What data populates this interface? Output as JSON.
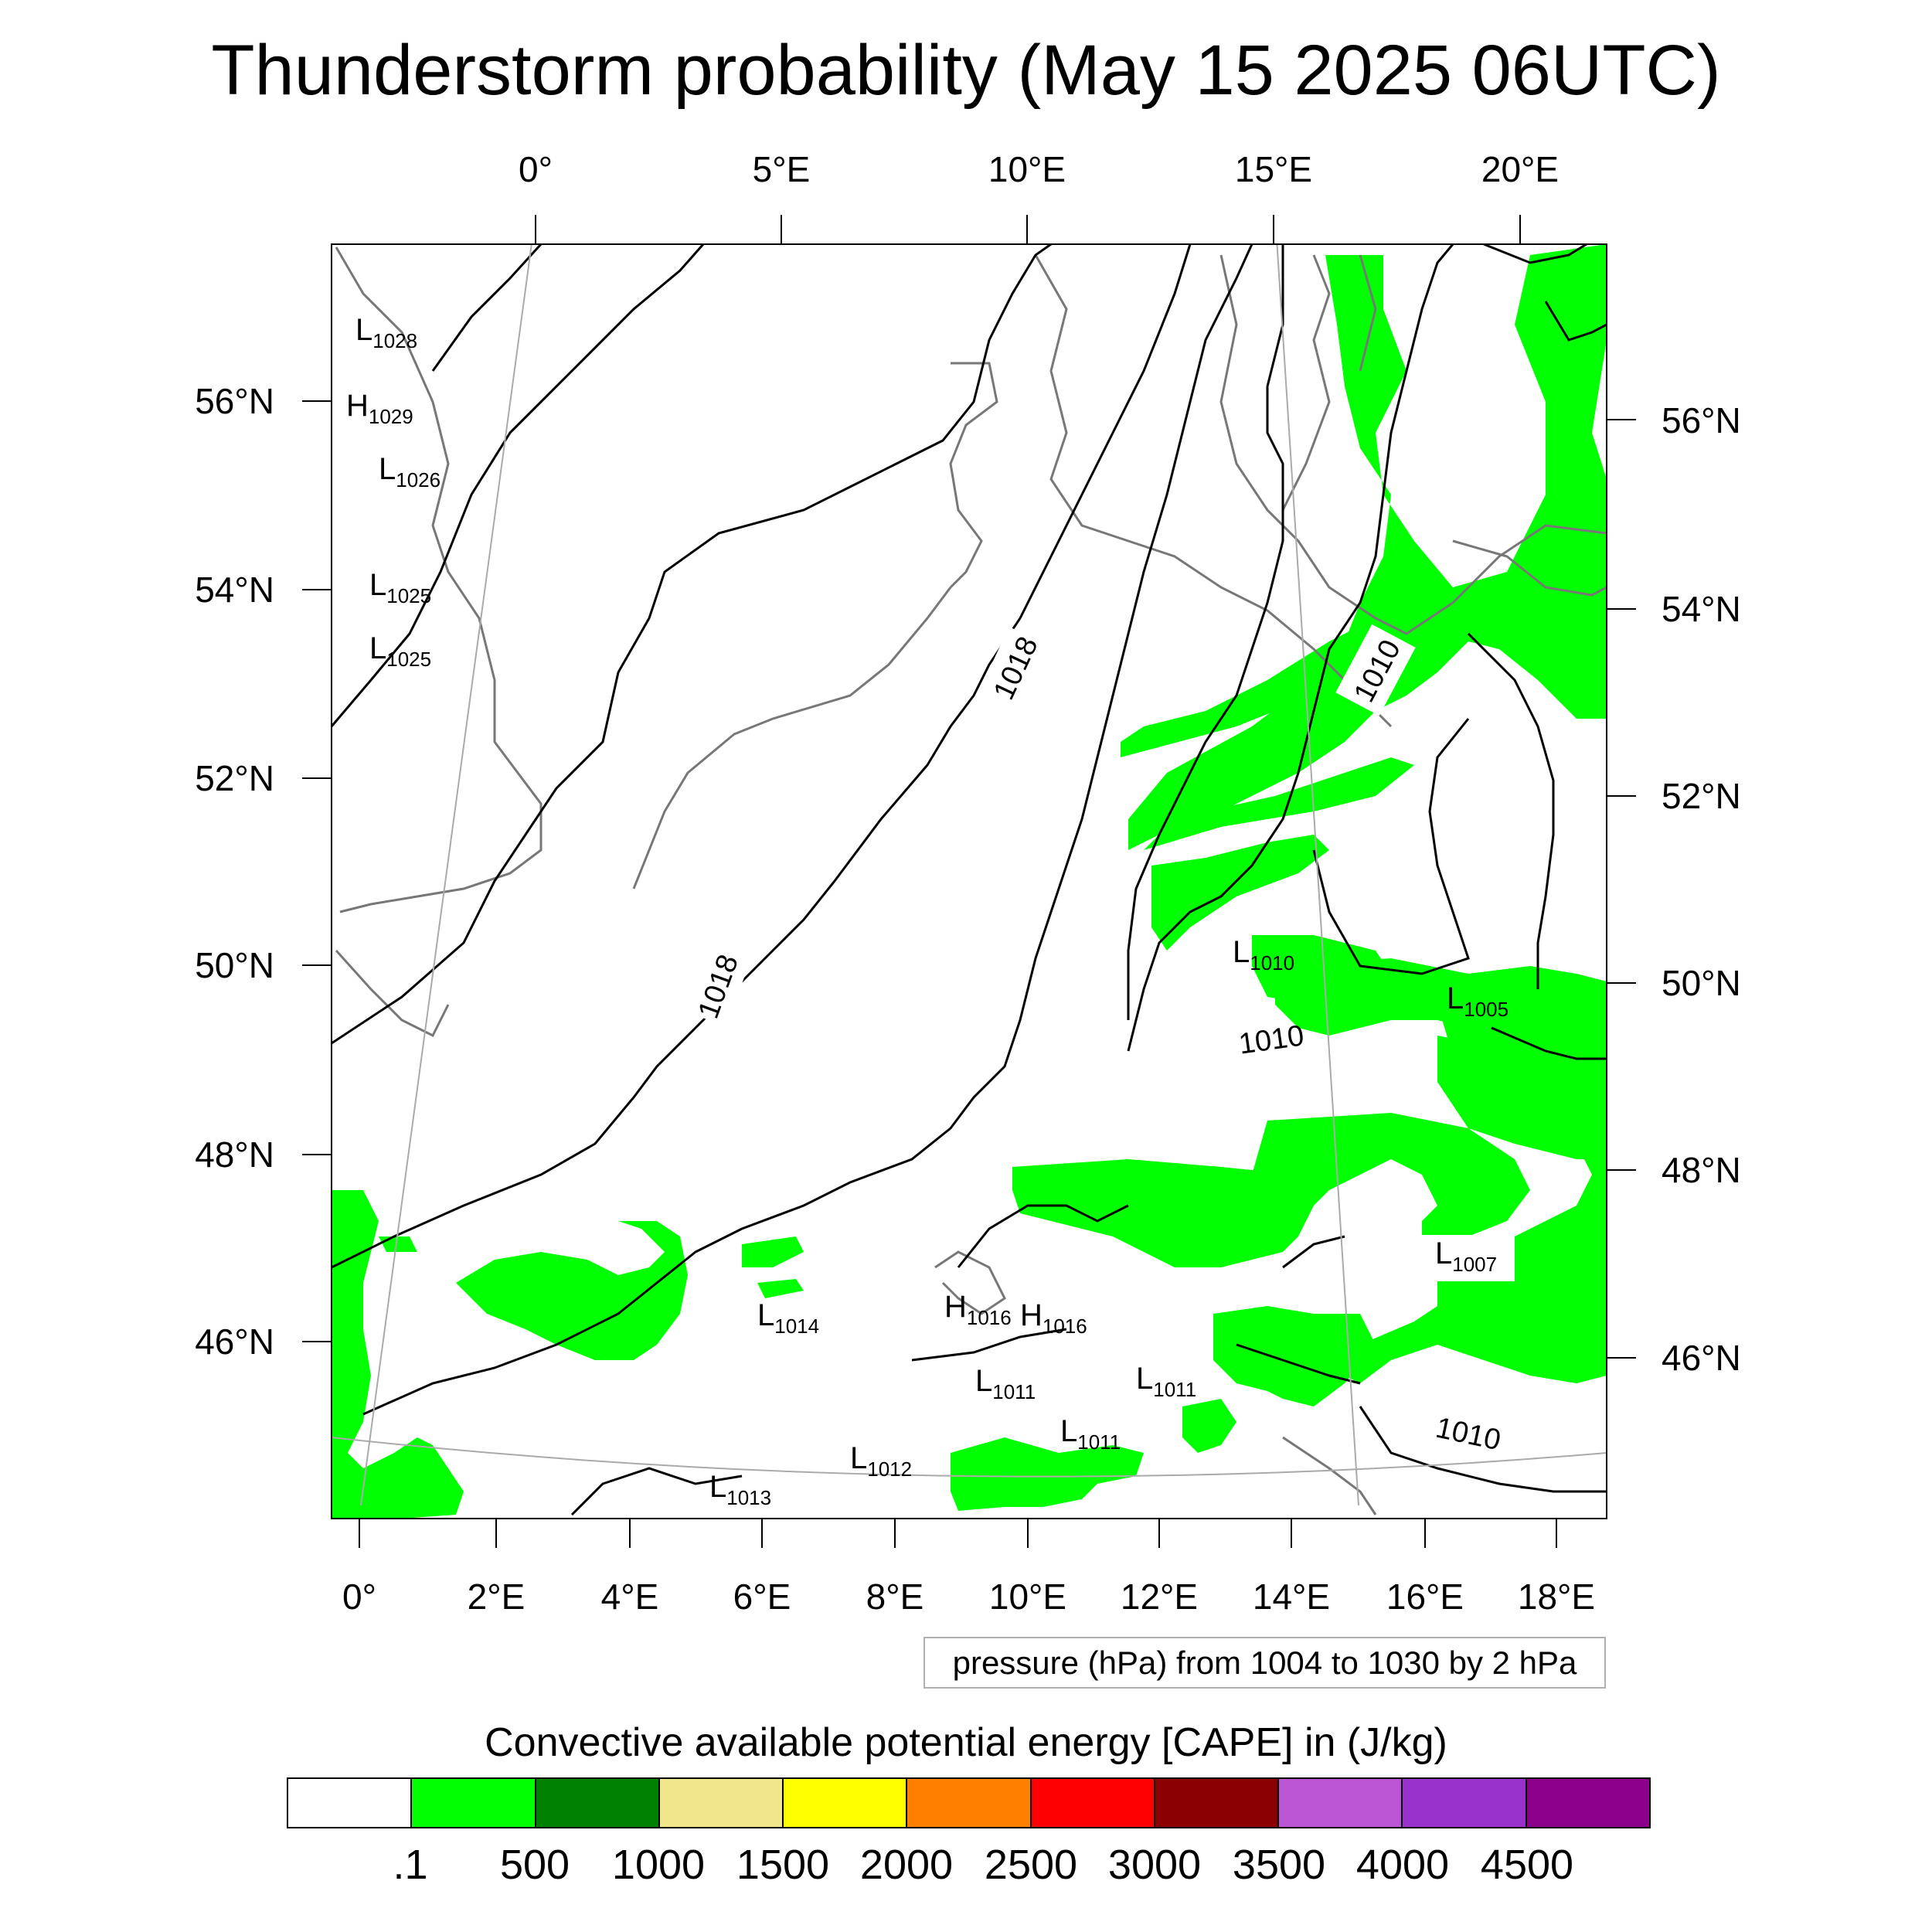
{
  "title": "Thunderstorm probability (May 15 2025 06UTC)",
  "top_lon_labels": [
    "0°",
    "5°E",
    "10°E",
    "15°E",
    "20°E"
  ],
  "bottom_lon_labels": [
    "0°",
    "2°E",
    "4°E",
    "6°E",
    "8°E",
    "10°E",
    "12°E",
    "14°E",
    "16°E",
    "18°E"
  ],
  "left_lat_labels": [
    "56°N",
    "54°N",
    "52°N",
    "50°N",
    "48°N",
    "46°N"
  ],
  "right_lat_labels": [
    "56°N",
    "54°N",
    "52°N",
    "50°N",
    "48°N",
    "46°N"
  ],
  "pressure_systems": [
    {
      "type": "L",
      "value": "1028"
    },
    {
      "type": "H",
      "value": "1029"
    },
    {
      "type": "L",
      "value": "1026"
    },
    {
      "type": "L",
      "value": "1025"
    },
    {
      "type": "L",
      "value": "1025"
    },
    {
      "type": "L",
      "value": "1014"
    },
    {
      "type": "H",
      "value": "1016"
    },
    {
      "type": "H",
      "value": "1016"
    },
    {
      "type": "L",
      "value": "1011"
    },
    {
      "type": "L",
      "value": "1011"
    },
    {
      "type": "L",
      "value": "1011"
    },
    {
      "type": "L",
      "value": "1012"
    },
    {
      "type": "L",
      "value": "1013"
    },
    {
      "type": "L",
      "value": "1010"
    },
    {
      "type": "L",
      "value": "1005"
    },
    {
      "type": "L",
      "value": "1007"
    }
  ],
  "isobar_labels": [
    "1018",
    "1018",
    "1010",
    "1010",
    "1010"
  ],
  "contour_info": "pressure (hPa) from 1004 to 1030 by 2 hPa",
  "colorbar": {
    "title": "Convective available potential energy [CAPE] in (J/kg)",
    "colors": [
      "#ffffff",
      "#00ff00",
      "#008000",
      "#f0e68c",
      "#ffff00",
      "#ff8000",
      "#ff0000",
      "#8b0000",
      "#ba55d3",
      "#9932cc",
      "#8b008b"
    ],
    "tick_labels": [
      ".1",
      "500",
      "1000",
      "1500",
      "2000",
      "2500",
      "3000",
      "3500",
      "4000",
      "4500"
    ]
  }
}
